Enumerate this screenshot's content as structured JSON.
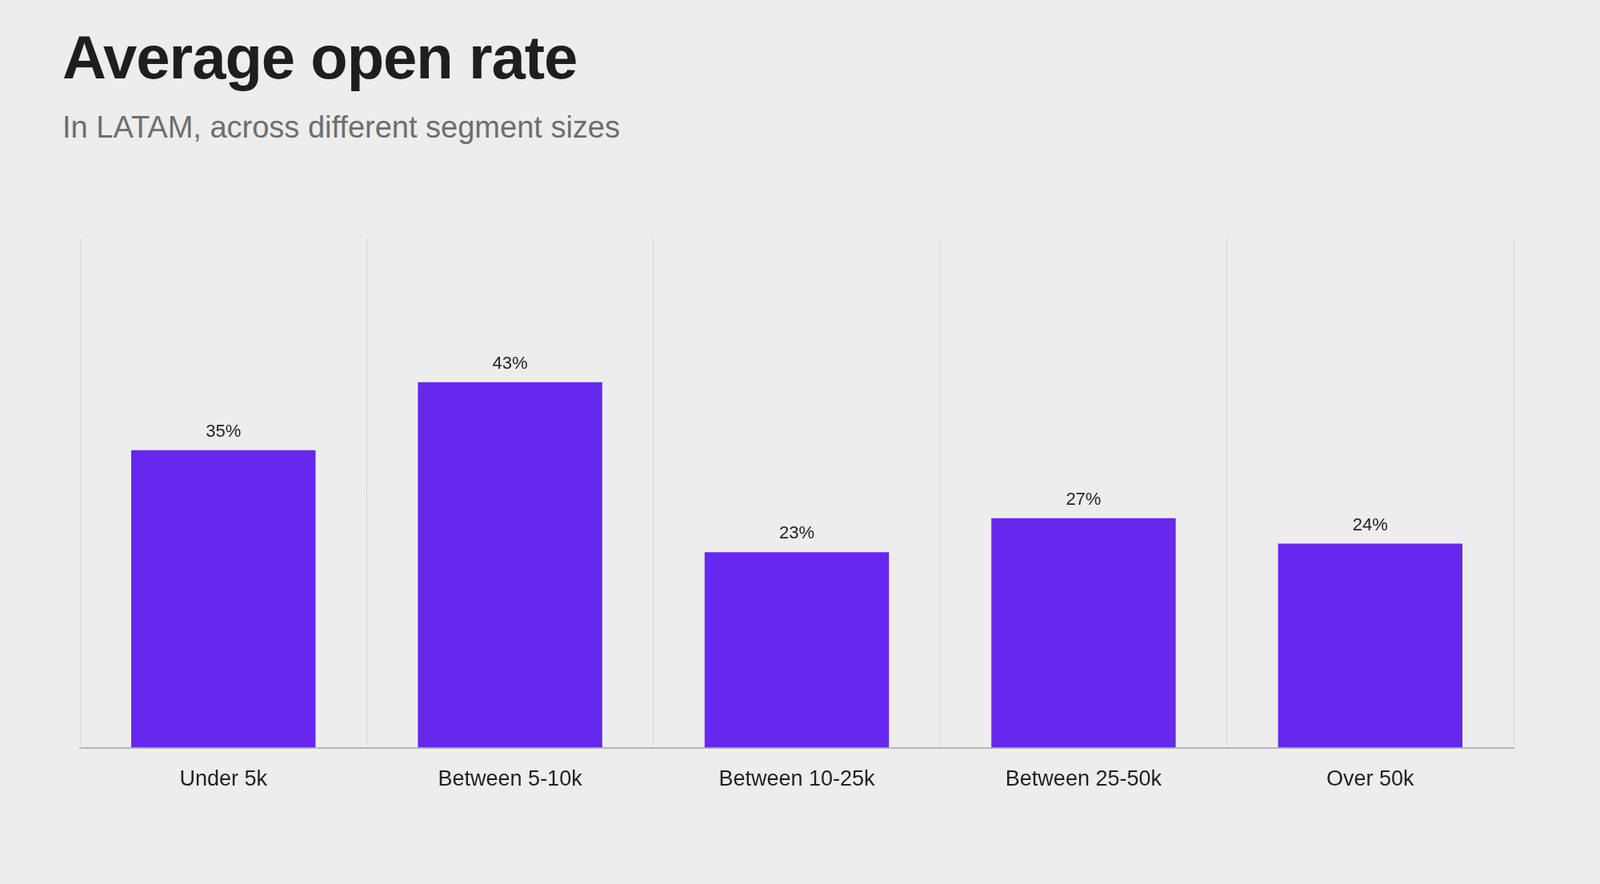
{
  "chart_data": {
    "type": "bar",
    "title": "Average open rate",
    "subtitle": "In LATAM, across different segment sizes",
    "categories": [
      "Under 5k",
      "Between 5-10k",
      "Between 10-25k",
      "Between 25-50k",
      "Over 50k"
    ],
    "values": [
      35,
      43,
      23,
      27,
      24
    ],
    "value_labels": [
      "35%",
      "43%",
      "23%",
      "27%",
      "24%"
    ],
    "color": "#6628ee",
    "ylim": [
      0,
      60
    ],
    "grid": true,
    "data_labels": true,
    "tick_labels": "x"
  }
}
